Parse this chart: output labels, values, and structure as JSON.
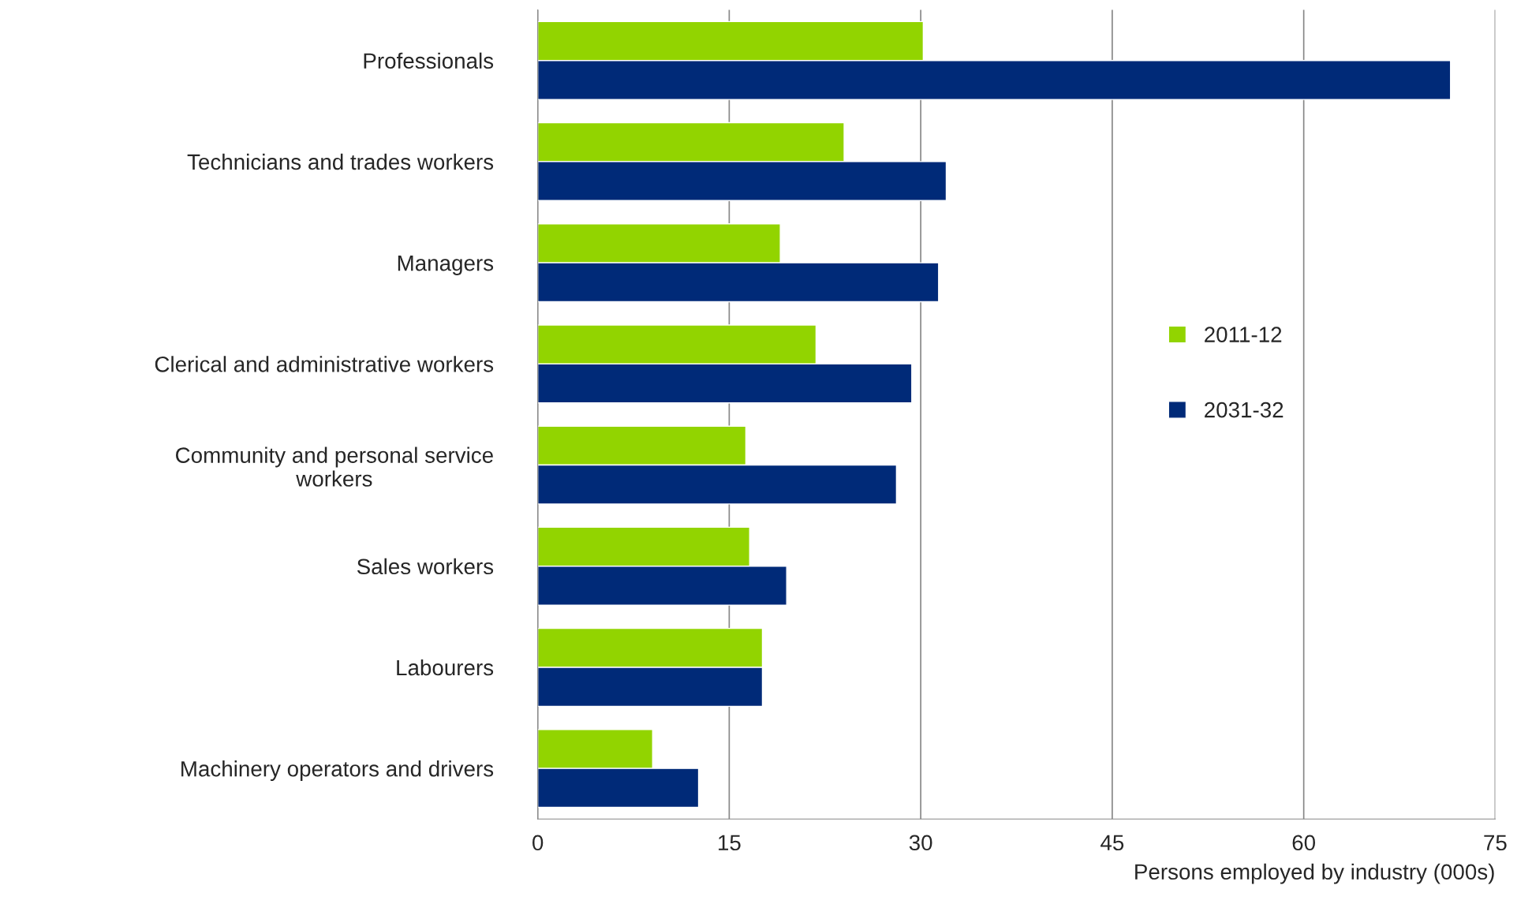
{
  "chart_data": {
    "type": "bar",
    "orientation": "horizontal",
    "xlabel": "Persons employed by industry (000s)",
    "categories": [
      "Professionals",
      "Technicians and trades workers",
      "Managers",
      "Clerical and administrative workers",
      "Community and personal service\nworkers",
      "Sales workers",
      "Labourers",
      "Machinery operators and drivers"
    ],
    "series": [
      {
        "name": "2011-12",
        "color": "#92d400",
        "values": [
          30.2,
          24.0,
          19.0,
          21.8,
          16.3,
          16.6,
          17.6,
          9.0
        ]
      },
      {
        "name": "2031-32",
        "color": "#002a78",
        "values": [
          71.5,
          32.0,
          31.4,
          29.3,
          28.1,
          19.5,
          17.6,
          12.6
        ]
      }
    ],
    "xlim": [
      0,
      75
    ],
    "xticks": [
      0,
      15,
      30,
      45,
      60,
      75
    ],
    "grid": "x",
    "legend": "right"
  }
}
